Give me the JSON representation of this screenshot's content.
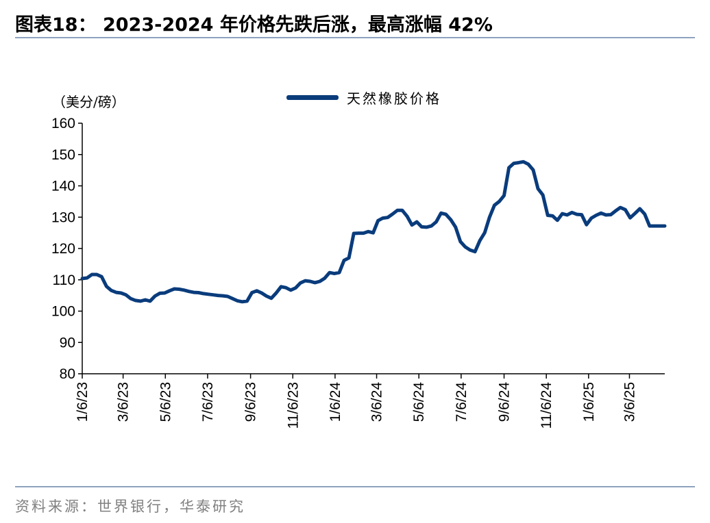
{
  "title": "图表18：  2023-2024 年价格先跌后涨，最高涨幅 42%",
  "source": "资料来源：世界银行，华泰研究",
  "colors": {
    "series": "#0a3c7c",
    "rule": "#8ea2bd"
  },
  "chart_data": {
    "type": "line",
    "ylabel": "（美分/磅）",
    "ylim": [
      80,
      160
    ],
    "yticks": [
      80,
      90,
      100,
      110,
      120,
      130,
      140,
      150,
      160
    ],
    "xlim": [
      "2023-01-06",
      "2025-04-26"
    ],
    "xtick_labels": [
      "1/6/23",
      "3/6/23",
      "5/6/23",
      "7/6/23",
      "9/6/23",
      "11/6/23",
      "1/6/24",
      "3/6/24",
      "5/6/24",
      "7/6/24",
      "9/6/24",
      "11/6/24",
      "1/6/25",
      "3/6/25"
    ],
    "xtick_dates": [
      "2023-01-06",
      "2023-03-06",
      "2023-05-06",
      "2023-07-06",
      "2023-09-06",
      "2023-11-06",
      "2024-01-06",
      "2024-03-06",
      "2024-05-06",
      "2024-07-06",
      "2024-09-06",
      "2024-11-06",
      "2025-01-06",
      "2025-03-06"
    ],
    "grid": false,
    "legend": "top-center",
    "series": [
      {
        "name": "天然橡胶价格",
        "x": [
          "2023-01-06",
          "2023-01-13",
          "2023-01-20",
          "2023-01-27",
          "2023-02-03",
          "2023-02-10",
          "2023-02-17",
          "2023-02-24",
          "2023-03-03",
          "2023-03-10",
          "2023-03-17",
          "2023-03-24",
          "2023-03-31",
          "2023-04-07",
          "2023-04-14",
          "2023-04-21",
          "2023-04-28",
          "2023-05-05",
          "2023-05-12",
          "2023-05-19",
          "2023-05-26",
          "2023-06-02",
          "2023-06-09",
          "2023-06-16",
          "2023-06-23",
          "2023-06-30",
          "2023-07-07",
          "2023-07-14",
          "2023-07-21",
          "2023-07-28",
          "2023-08-04",
          "2023-08-11",
          "2023-08-18",
          "2023-08-25",
          "2023-09-01",
          "2023-09-08",
          "2023-09-15",
          "2023-09-22",
          "2023-09-29",
          "2023-10-06",
          "2023-10-13",
          "2023-10-20",
          "2023-10-27",
          "2023-11-03",
          "2023-11-10",
          "2023-11-17",
          "2023-11-24",
          "2023-12-01",
          "2023-12-08",
          "2023-12-15",
          "2023-12-22",
          "2023-12-29",
          "2024-01-05",
          "2024-01-12",
          "2024-01-19",
          "2024-01-26",
          "2024-02-02",
          "2024-02-09",
          "2024-02-16",
          "2024-02-23",
          "2024-03-01",
          "2024-03-08",
          "2024-03-15",
          "2024-03-22",
          "2024-03-29",
          "2024-04-05",
          "2024-04-12",
          "2024-04-19",
          "2024-04-26",
          "2024-05-03",
          "2024-05-10",
          "2024-05-17",
          "2024-05-24",
          "2024-05-31",
          "2024-06-07",
          "2024-06-14",
          "2024-06-21",
          "2024-06-28",
          "2024-07-05",
          "2024-07-12",
          "2024-07-19",
          "2024-07-26",
          "2024-08-02",
          "2024-08-09",
          "2024-08-16",
          "2024-08-23",
          "2024-08-30",
          "2024-09-06",
          "2024-09-13",
          "2024-09-20",
          "2024-09-27",
          "2024-10-04",
          "2024-10-11",
          "2024-10-18",
          "2024-10-25",
          "2024-11-01",
          "2024-11-08",
          "2024-11-15",
          "2024-11-22",
          "2024-11-29",
          "2024-12-06",
          "2024-12-13",
          "2024-12-20",
          "2024-12-27",
          "2025-01-03",
          "2025-01-10",
          "2025-01-17",
          "2025-01-24",
          "2025-01-31",
          "2025-02-07",
          "2025-02-14",
          "2025-02-21",
          "2025-02-28",
          "2025-03-07",
          "2025-03-14",
          "2025-03-21",
          "2025-03-28",
          "2025-04-04",
          "2025-04-11",
          "2025-04-18",
          "2025-04-26"
        ],
        "y": [
          110.4,
          110.6,
          111.7,
          111.7,
          111.0,
          107.9,
          106.6,
          106.0,
          105.8,
          105.2,
          104.0,
          103.4,
          103.2,
          103.6,
          103.2,
          104.8,
          105.7,
          105.8,
          106.5,
          107.1,
          107.0,
          106.7,
          106.3,
          106.0,
          105.9,
          105.6,
          105.4,
          105.2,
          105.0,
          104.9,
          104.7,
          104.0,
          103.3,
          103.0,
          103.2,
          105.9,
          106.5,
          105.8,
          104.8,
          104.1,
          105.8,
          107.8,
          107.5,
          106.7,
          107.4,
          109.0,
          109.7,
          109.5,
          109.1,
          109.5,
          110.5,
          112.3,
          112.0,
          112.3,
          116.2,
          117.0,
          124.8,
          124.9,
          124.9,
          125.4,
          125.0,
          128.9,
          129.7,
          129.9,
          131.0,
          132.2,
          132.2,
          130.3,
          127.5,
          128.5,
          126.9,
          126.8,
          127.2,
          128.5,
          131.3,
          130.9,
          129.2,
          126.8,
          122.2,
          120.5,
          119.5,
          119.0,
          122.5,
          125.0,
          130.0,
          133.8,
          135.0,
          136.9,
          145.8,
          147.2,
          147.4,
          147.7,
          146.9,
          145.1,
          139.1,
          137.1,
          130.6,
          130.4,
          129.0,
          131.1,
          130.7,
          131.5,
          130.9,
          130.8,
          127.6,
          129.7,
          130.6,
          131.3,
          130.7,
          130.8,
          132.0,
          133.1,
          132.4,
          129.8,
          131.2,
          132.7,
          131.0,
          127.2,
          127.2,
          127.2,
          127.2
        ]
      }
    ]
  }
}
